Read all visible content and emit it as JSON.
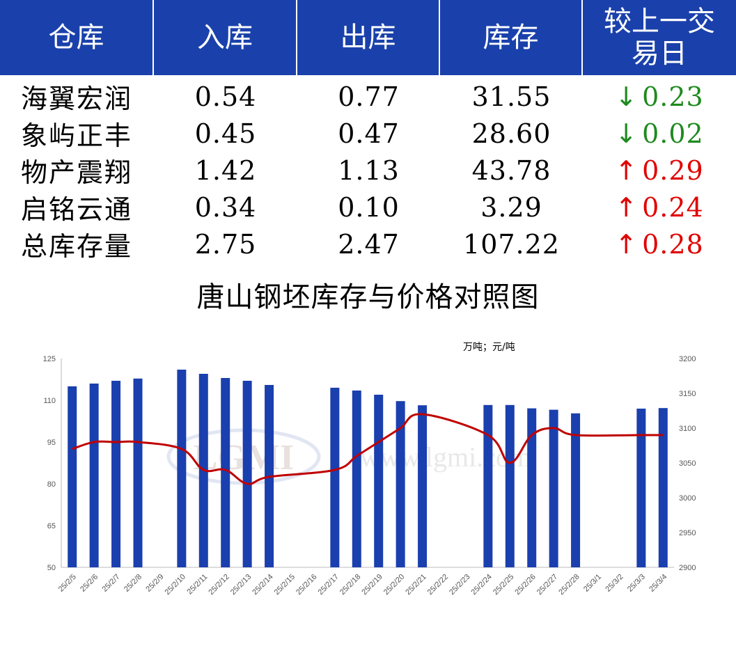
{
  "table": {
    "headers": [
      "仓库",
      "入库",
      "出库",
      "库存",
      "较上一交易日"
    ],
    "rows": [
      {
        "name": "海翼宏润",
        "in": "0.54",
        "out": "0.77",
        "stock": "31.55",
        "dir": "down",
        "change": "0.23"
      },
      {
        "name": "象屿正丰",
        "in": "0.45",
        "out": "0.47",
        "stock": "28.60",
        "dir": "down",
        "change": "0.02"
      },
      {
        "name": "物产震翔",
        "in": "1.42",
        "out": "1.13",
        "stock": "43.78",
        "dir": "up",
        "change": "0.29"
      },
      {
        "name": "启铭云通",
        "in": "0.34",
        "out": "0.10",
        "stock": "3.29",
        "dir": "up",
        "change": "0.24"
      },
      {
        "name": "总库存量",
        "in": "2.75",
        "out": "2.47",
        "stock": "107.22",
        "dir": "up",
        "change": "0.28"
      }
    ],
    "colors": {
      "header_bg": "#1a41ab",
      "down": "#1e8a1e",
      "up": "#e00000"
    }
  },
  "chart_data": {
    "type": "bar",
    "title": "唐山钢坯库存与价格对照图",
    "unit_label": "万吨；元/吨",
    "categories": [
      "25/2/5",
      "25/2/6",
      "25/2/7",
      "25/2/8",
      "25/2/9",
      "25/2/10",
      "25/2/11",
      "25/2/12",
      "25/2/13",
      "25/2/14",
      "25/2/15",
      "25/2/16",
      "25/2/17",
      "25/2/18",
      "25/2/19",
      "25/2/20",
      "25/2/21",
      "25/2/22",
      "25/2/23",
      "25/2/24",
      "25/2/25",
      "25/2/26",
      "25/2/27",
      "25/2/28",
      "25/3/1",
      "25/3/2",
      "25/3/3",
      "25/3/4"
    ],
    "series": [
      {
        "kind": "bar",
        "axis": "left",
        "color": "#1a3fae",
        "values": [
          115,
          116,
          117,
          117.8,
          null,
          121,
          119.5,
          118,
          117,
          115.5,
          null,
          null,
          114.5,
          113.5,
          112,
          109.7,
          108.2,
          null,
          null,
          108.3,
          108.3,
          107.1,
          106.6,
          105.3,
          null,
          null,
          107,
          107.2
        ]
      },
      {
        "kind": "line",
        "axis": "right",
        "color": "#c00000",
        "values": [
          3070,
          3080,
          3080,
          3080,
          null,
          3070,
          3040,
          3040,
          3020,
          3030,
          null,
          null,
          3040,
          3060,
          3080,
          3100,
          3120,
          null,
          null,
          3090,
          3050,
          3090,
          3100,
          3090,
          null,
          null,
          3090,
          3090
        ]
      }
    ],
    "left_axis": {
      "ylim": [
        50,
        125
      ],
      "ticks": [
        50,
        65,
        80,
        95,
        110,
        125
      ]
    },
    "right_axis": {
      "ylim": [
        2900,
        3200
      ],
      "ticks": [
        2900,
        2950,
        3000,
        3050,
        3100,
        3150,
        3200
      ]
    },
    "watermark": "www.lgmi.com",
    "watermark_logo": "LGMI"
  }
}
